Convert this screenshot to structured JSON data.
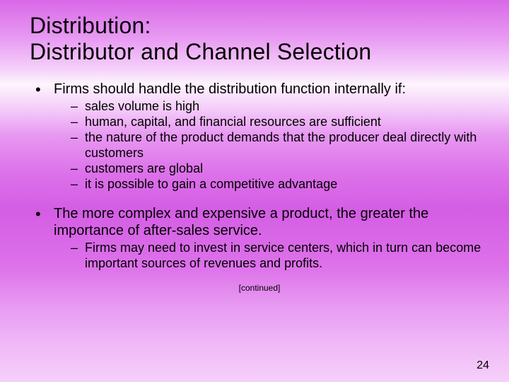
{
  "title_line1": "Distribution:",
  "title_line2": "Distributor and Channel Selection",
  "bullets": [
    {
      "text": "Firms should handle the distribution function internally if:",
      "sub": [
        "sales volume is high",
        "human, capital, and financial resources are sufficient",
        "the nature of the product demands that the producer deal directly with customers",
        "customers are global",
        "it is possible to gain a competitive advantage"
      ]
    },
    {
      "text": "The more complex and expensive a product, the greater the importance of after-sales service.",
      "sub": [
        "Firms may need to invest in service centers, which in turn can become important sources of revenues and profits."
      ]
    }
  ],
  "continued_label": "[continued]",
  "page_number": "24"
}
